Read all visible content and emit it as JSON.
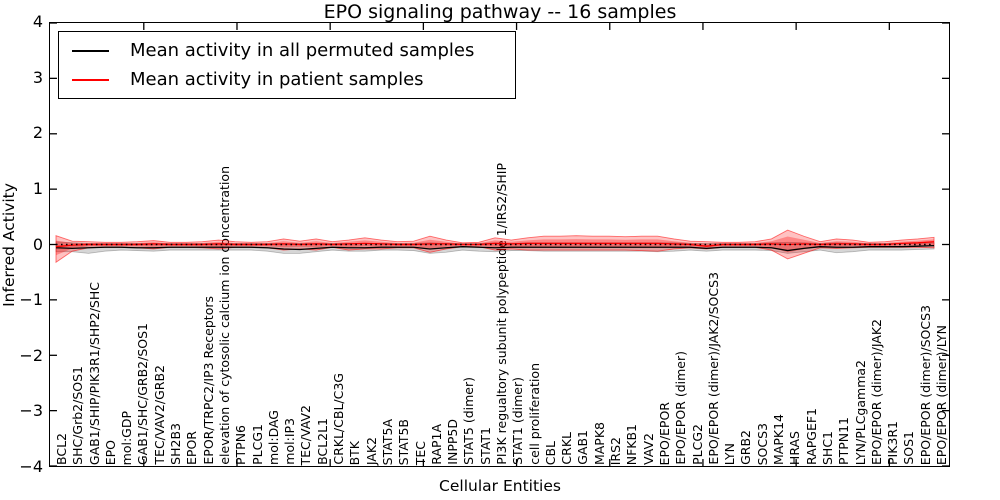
{
  "title": "EPO signaling pathway -- 16 samples",
  "legend": {
    "items": [
      {
        "label": "Mean activity in all permuted samples",
        "color": "#000000"
      },
      {
        "label": "Mean activity in patient samples",
        "color": "#ff0000"
      }
    ]
  },
  "axes": {
    "ylabel": "Inferred Activity",
    "xlabel": "Cellular Entities",
    "yticks": [
      "4",
      "3",
      "2",
      "1",
      "0",
      "−1",
      "−2",
      "−3",
      "−4"
    ],
    "ylim": [
      -4,
      4
    ]
  },
  "chart_data": {
    "type": "line",
    "title": "EPO signaling pathway -- 16 samples",
    "xlabel": "Cellular Entities",
    "ylabel": "Inferred Activity",
    "ylim": [
      -4,
      4
    ],
    "grid": false,
    "legend_position": "upper left",
    "zero_reference_line": {
      "y": 0,
      "style": "dotted",
      "color": "#000000"
    },
    "categories": [
      "BCL2",
      "SHC/Grb2/SOS1",
      "GAB1/SHIP/PIK3R1/SHP2/SHC",
      "EPO",
      "mol:GDP",
      "GAB1/SHC/GRB2/SOS1",
      "TEC/VAV2/GRB2",
      "SH2B3",
      "EPOR",
      "EPOR/TRPC2/IP3 Receptors",
      "elevation of cytosolic calcium ion concentration",
      "PTPN6",
      "PLCG1",
      "mol:DAG",
      "mol:IP3",
      "TEC/VAV2",
      "BCL2L1",
      "CRKL/CBL/C3G",
      "BTK",
      "JAK2",
      "STAT5A",
      "STAT5B",
      "TEC",
      "RAP1A",
      "INPP5D",
      "STAT5 (dimer)",
      "STAT1",
      "PI3K regualtory subunit polypeptide 1/IRS2/SHIP",
      "STAT1 (dimer)",
      "cell proliferation",
      "CBL",
      "CRKL",
      "GAB1",
      "MAPK8",
      "IRS2",
      "NFKB1",
      "VAV2",
      "EPO/EPOR",
      "EPO/EPOR (dimer)",
      "PLCG2",
      "EPO/EPOR (dimer)/JAK2/SOCS3",
      "LYN",
      "GRB2",
      "SOCS3",
      "MAPK14",
      "HRAS",
      "RAPGEF1",
      "SHC1",
      "PTPN11",
      "LYN/PLCgamma2",
      "EPO/EPOR (dimer)/JAK2",
      "PIK3R1",
      "SOS1",
      "EPO/EPOR (dimer)/SOCS3",
      "EPO/EPOR (dimer)/LYN"
    ],
    "series": [
      {
        "name": "Mean activity in all permuted samples",
        "type": "line",
        "color": "#000000",
        "band_color": "rgba(0,0,0,0.16)",
        "values": [
          -0.06,
          -0.07,
          -0.06,
          -0.05,
          -0.05,
          -0.06,
          -0.06,
          -0.05,
          -0.05,
          -0.05,
          -0.05,
          -0.05,
          -0.05,
          -0.06,
          -0.08,
          -0.09,
          -0.07,
          -0.05,
          -0.06,
          -0.06,
          -0.05,
          -0.05,
          -0.05,
          -0.08,
          -0.06,
          -0.04,
          -0.05,
          -0.06,
          -0.05,
          -0.05,
          -0.05,
          -0.05,
          -0.05,
          -0.05,
          -0.05,
          -0.05,
          -0.05,
          -0.05,
          -0.05,
          -0.05,
          -0.07,
          -0.05,
          -0.05,
          -0.05,
          -0.06,
          -0.11,
          -0.07,
          -0.04,
          -0.05,
          -0.05,
          -0.04,
          -0.04,
          -0.04,
          -0.03,
          -0.02
        ],
        "band_upper": [
          0.05,
          0.03,
          0.02,
          0.02,
          0.02,
          0.02,
          0.02,
          0.02,
          0.02,
          0.02,
          0.02,
          0.02,
          0.02,
          0.02,
          0.02,
          0.02,
          0.02,
          0.02,
          0.02,
          0.02,
          0.02,
          0.02,
          0.02,
          0.03,
          0.02,
          0.02,
          0.02,
          0.03,
          0.02,
          0.03,
          0.03,
          0.03,
          0.03,
          0.03,
          0.03,
          0.03,
          0.03,
          0.03,
          0.03,
          0.02,
          0.02,
          0.02,
          0.02,
          0.02,
          0.03,
          0.04,
          0.03,
          0.02,
          0.03,
          0.02,
          0.02,
          0.02,
          0.02,
          0.02,
          0.03
        ],
        "band_lower": [
          -0.13,
          -0.13,
          -0.16,
          -0.12,
          -0.1,
          -0.11,
          -0.12,
          -0.1,
          -0.1,
          -0.1,
          -0.1,
          -0.1,
          -0.1,
          -0.12,
          -0.16,
          -0.16,
          -0.13,
          -0.1,
          -0.12,
          -0.12,
          -0.1,
          -0.1,
          -0.11,
          -0.16,
          -0.14,
          -0.1,
          -0.12,
          -0.13,
          -0.11,
          -0.11,
          -0.12,
          -0.12,
          -0.12,
          -0.12,
          -0.12,
          -0.12,
          -0.12,
          -0.13,
          -0.12,
          -0.1,
          -0.12,
          -0.1,
          -0.1,
          -0.1,
          -0.11,
          -0.16,
          -0.13,
          -0.1,
          -0.15,
          -0.13,
          -0.1,
          -0.1,
          -0.1,
          -0.09,
          -0.08
        ]
      },
      {
        "name": "Mean activity in patient samples",
        "type": "line",
        "color": "#ff0000",
        "band_color": "rgba(255,0,0,0.24)",
        "values": [
          -0.04,
          -0.01,
          0,
          0,
          0,
          0,
          0.01,
          0,
          0,
          0,
          0.01,
          0,
          0,
          0,
          0.01,
          0,
          0.01,
          0,
          0.01,
          0.02,
          0.01,
          0,
          0,
          0.01,
          0.01,
          0,
          0,
          0.02,
          0.01,
          0.02,
          0.02,
          0.02,
          0.02,
          0.02,
          0.02,
          0.02,
          0.02,
          0.02,
          0.01,
          0,
          -0.03,
          0,
          0,
          0,
          0.01,
          0,
          0.01,
          0,
          0.01,
          0.01,
          0,
          0,
          0.02,
          0.03,
          0.05
        ],
        "band_upper": [
          0.16,
          0.06,
          0.05,
          0.04,
          0.04,
          0.05,
          0.07,
          0.04,
          0.04,
          0.05,
          0.08,
          0.05,
          0.04,
          0.05,
          0.1,
          0.06,
          0.1,
          0.05,
          0.08,
          0.12,
          0.08,
          0.05,
          0.06,
          0.15,
          0.08,
          0.03,
          0.04,
          0.12,
          0.08,
          0.12,
          0.15,
          0.15,
          0.16,
          0.15,
          0.15,
          0.14,
          0.15,
          0.15,
          0.1,
          0.06,
          0.05,
          0.04,
          0.04,
          0.05,
          0.1,
          0.26,
          0.15,
          0.05,
          0.1,
          0.08,
          0.04,
          0.05,
          0.08,
          0.1,
          0.13
        ],
        "band_lower": [
          -0.32,
          -0.12,
          -0.06,
          -0.05,
          -0.05,
          -0.06,
          -0.08,
          -0.05,
          -0.05,
          -0.06,
          -0.08,
          -0.05,
          -0.05,
          -0.06,
          -0.1,
          -0.08,
          -0.1,
          -0.05,
          -0.1,
          -0.08,
          -0.08,
          -0.06,
          -0.06,
          -0.14,
          -0.08,
          -0.04,
          -0.04,
          -0.1,
          -0.08,
          -0.1,
          -0.1,
          -0.1,
          -0.1,
          -0.1,
          -0.1,
          -0.1,
          -0.11,
          -0.12,
          -0.08,
          -0.06,
          -0.08,
          -0.05,
          -0.05,
          -0.05,
          -0.1,
          -0.26,
          -0.16,
          -0.06,
          -0.07,
          -0.06,
          -0.05,
          -0.05,
          -0.05,
          -0.05,
          -0.06
        ]
      }
    ]
  }
}
